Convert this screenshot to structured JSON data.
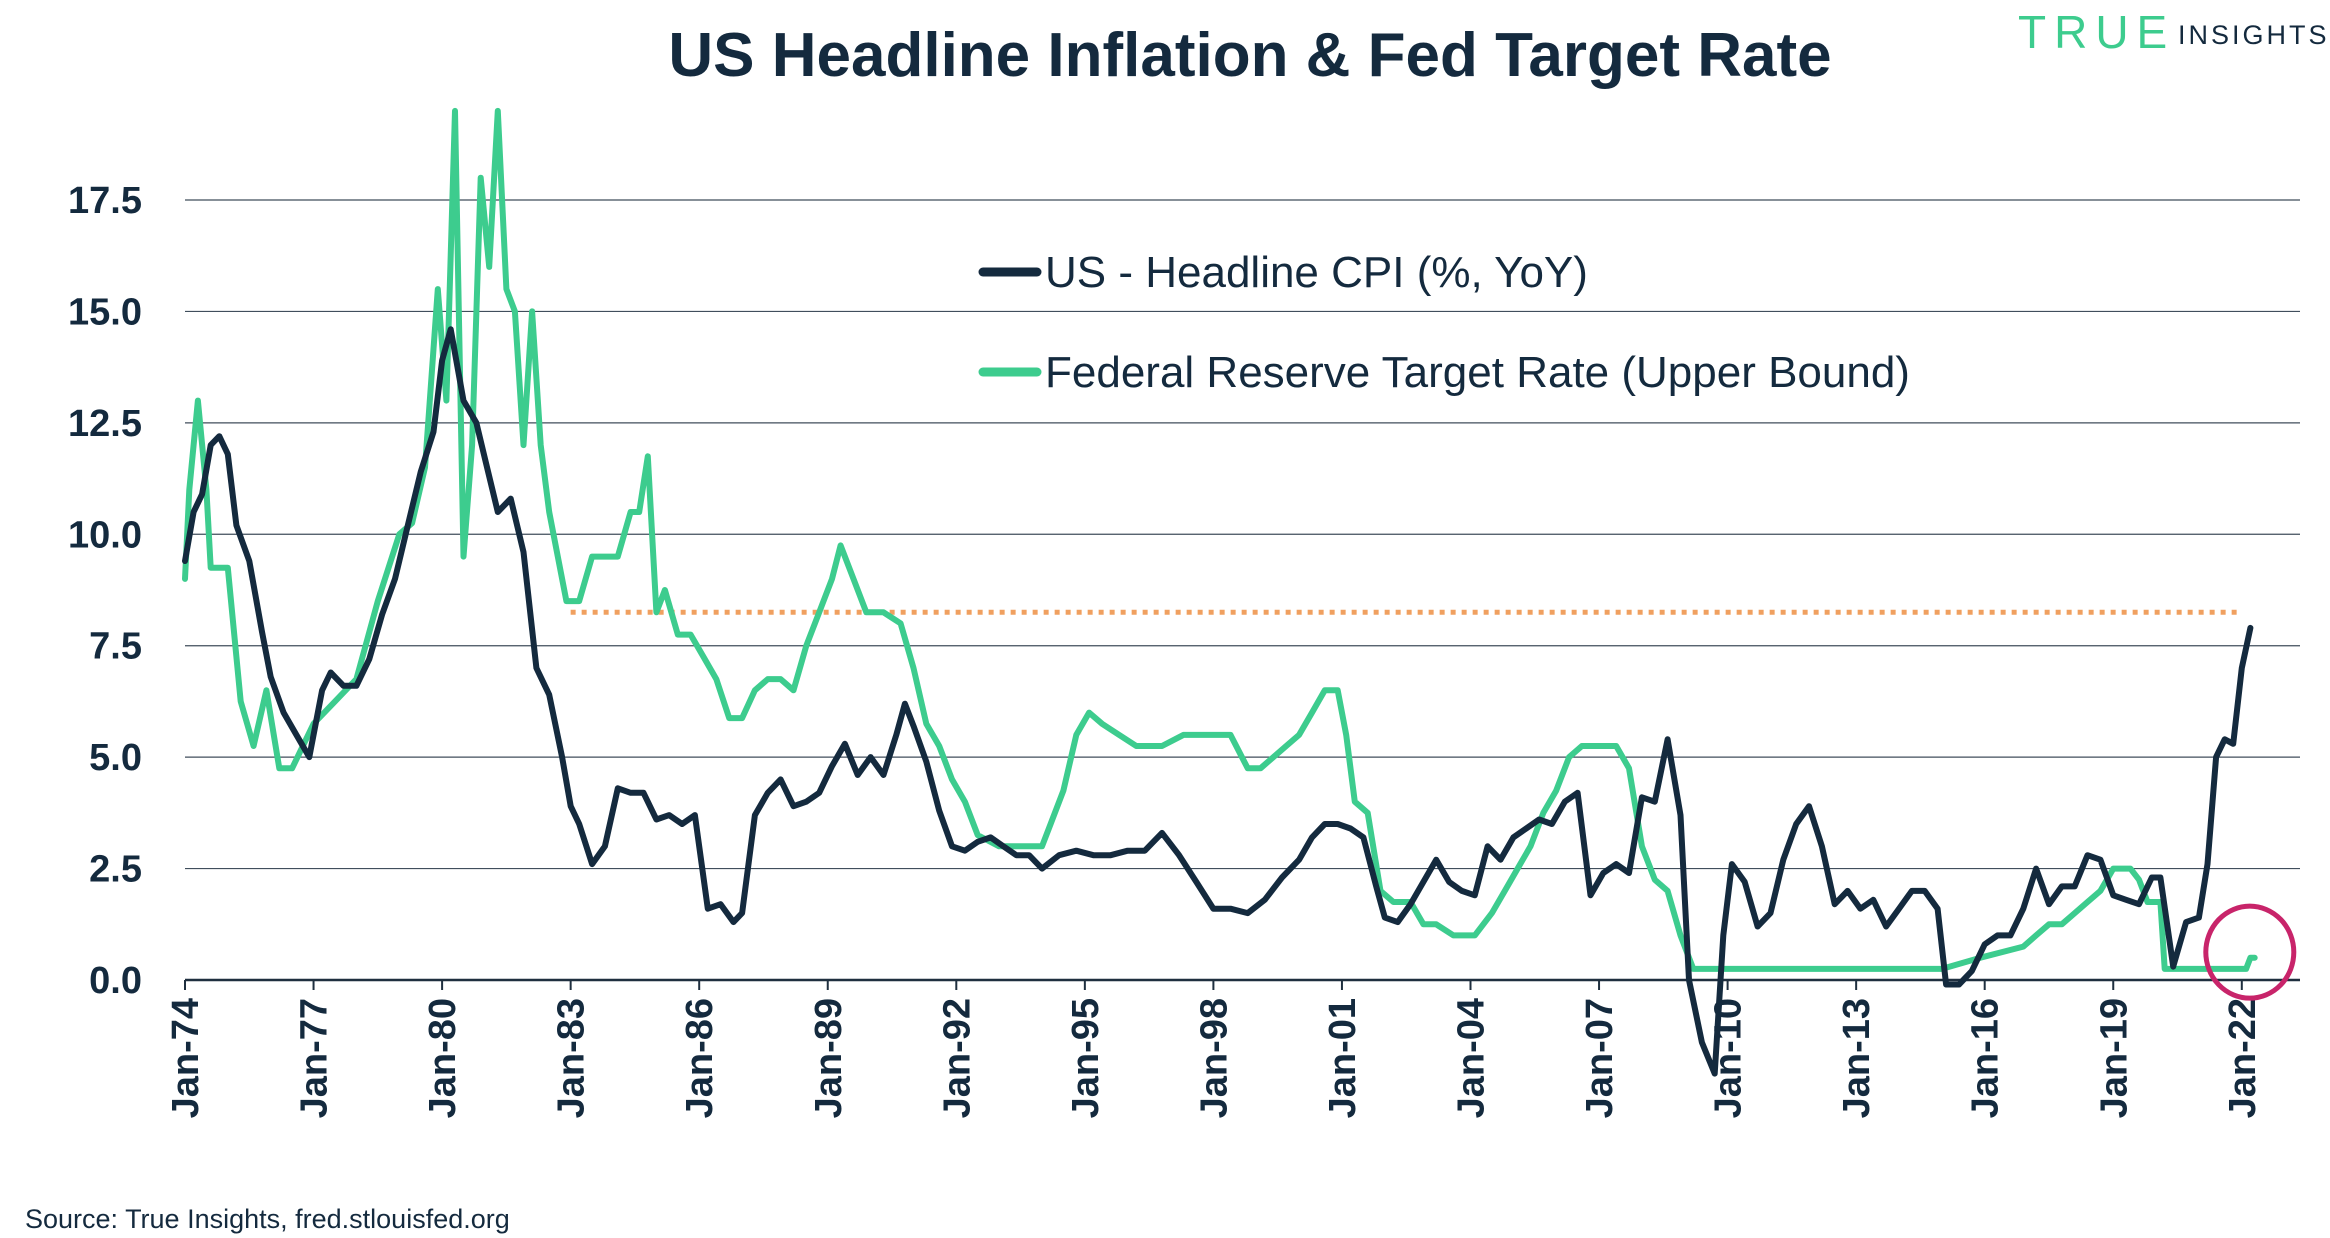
{
  "brand": {
    "logo_word1": "TRUE",
    "logo_word2": "INSIGHTS",
    "logo_color": "#3dcc8e"
  },
  "source": "Source: True Insights, fred.stlouisfed.org",
  "colors": {
    "cpi": "#142a3e",
    "fed": "#3dcc8e",
    "reference": "#f0a060",
    "highlight": "#c8246a",
    "grid": "#1f2f3f"
  },
  "chart_data": {
    "type": "line",
    "title": "US Headline Inflation & Fed Target Rate",
    "xlabel": "",
    "ylabel": "",
    "xlim": [
      1974.0,
      2022.5
    ],
    "ylim": [
      0,
      20
    ],
    "yticks": [
      0.0,
      2.5,
      5.0,
      7.5,
      10.0,
      12.5,
      15.0,
      17.5
    ],
    "ytick_labels": [
      "0.0",
      "2.5",
      "5.0",
      "7.5",
      "10.0",
      "12.5",
      "15.0",
      "17.5"
    ],
    "xticks": [
      1974,
      1977,
      1980,
      1983,
      1986,
      1989,
      1992,
      1995,
      1998,
      2001,
      2004,
      2007,
      2010,
      2013,
      2016,
      2019,
      2022
    ],
    "xtick_labels": [
      "Jan-74",
      "Jan-77",
      "Jan-80",
      "Jan-83",
      "Jan-86",
      "Jan-89",
      "Jan-92",
      "Jan-95",
      "Jan-98",
      "Jan-01",
      "Jan-04",
      "Jan-07",
      "Jan-10",
      "Jan-13",
      "Jan-16",
      "Jan-19",
      "Jan-22"
    ],
    "grid": true,
    "legend_position": "top-center",
    "series": [
      {
        "name": "US - Headline CPI (%, YoY)",
        "color": "#142a3e",
        "x": [
          1974.0,
          1974.2,
          1974.4,
          1974.6,
          1974.8,
          1975.0,
          1975.2,
          1975.5,
          1975.8,
          1976.0,
          1976.3,
          1976.6,
          1976.9,
          1977.2,
          1977.4,
          1977.7,
          1978.0,
          1978.3,
          1978.6,
          1978.9,
          1979.2,
          1979.5,
          1979.8,
          1980.0,
          1980.2,
          1980.5,
          1980.8,
          1981.0,
          1981.3,
          1981.6,
          1981.9,
          1982.2,
          1982.5,
          1982.8,
          1983.0,
          1983.2,
          1983.5,
          1983.8,
          1984.1,
          1984.4,
          1984.7,
          1985.0,
          1985.3,
          1985.6,
          1985.9,
          1986.2,
          1986.5,
          1986.8,
          1987.0,
          1987.3,
          1987.6,
          1987.9,
          1988.2,
          1988.5,
          1988.8,
          1989.1,
          1989.4,
          1989.7,
          1990.0,
          1990.3,
          1990.6,
          1990.8,
          1991.0,
          1991.3,
          1991.6,
          1991.9,
          1992.2,
          1992.5,
          1992.8,
          1993.1,
          1993.4,
          1993.7,
          1994.0,
          1994.4,
          1994.8,
          1995.2,
          1995.6,
          1996.0,
          1996.4,
          1996.8,
          1997.2,
          1997.6,
          1998.0,
          1998.4,
          1998.8,
          1999.2,
          1999.6,
          2000.0,
          2000.3,
          2000.6,
          2000.9,
          2001.2,
          2001.5,
          2001.8,
          2002.0,
          2002.3,
          2002.6,
          2002.9,
          2003.2,
          2003.5,
          2003.8,
          2004.1,
          2004.4,
          2004.7,
          2005.0,
          2005.3,
          2005.6,
          2005.9,
          2006.2,
          2006.5,
          2006.8,
          2007.1,
          2007.4,
          2007.7,
          2008.0,
          2008.3,
          2008.6,
          2008.9,
          2009.1,
          2009.4,
          2009.7,
          2009.9,
          2010.1,
          2010.4,
          2010.7,
          2011.0,
          2011.3,
          2011.6,
          2011.9,
          2012.2,
          2012.5,
          2012.8,
          2013.1,
          2013.4,
          2013.7,
          2014.0,
          2014.3,
          2014.6,
          2014.9,
          2015.1,
          2015.4,
          2015.7,
          2016.0,
          2016.3,
          2016.6,
          2016.9,
          2017.2,
          2017.5,
          2017.8,
          2018.1,
          2018.4,
          2018.7,
          2019.0,
          2019.3,
          2019.6,
          2019.9,
          2020.1,
          2020.4,
          2020.7,
          2021.0,
          2021.2,
          2021.4,
          2021.6,
          2021.8,
          2022.0,
          2022.2
        ],
        "values": [
          9.4,
          10.5,
          10.9,
          12.0,
          12.2,
          11.8,
          10.2,
          9.4,
          7.8,
          6.8,
          6.0,
          5.5,
          5.0,
          6.5,
          6.9,
          6.6,
          6.6,
          7.2,
          8.2,
          9.0,
          10.2,
          11.4,
          12.3,
          13.9,
          14.6,
          13.0,
          12.5,
          11.7,
          10.5,
          10.8,
          9.6,
          7.0,
          6.4,
          5.0,
          3.9,
          3.5,
          2.6,
          3.0,
          4.3,
          4.2,
          4.2,
          3.6,
          3.7,
          3.5,
          3.7,
          1.6,
          1.7,
          1.3,
          1.5,
          3.7,
          4.2,
          4.5,
          3.9,
          4.0,
          4.2,
          4.8,
          5.3,
          4.6,
          5.0,
          4.6,
          5.5,
          6.2,
          5.7,
          4.9,
          3.8,
          3.0,
          2.9,
          3.1,
          3.2,
          3.0,
          2.8,
          2.8,
          2.5,
          2.8,
          2.9,
          2.8,
          2.8,
          2.9,
          2.9,
          3.3,
          2.8,
          2.2,
          1.6,
          1.6,
          1.5,
          1.8,
          2.3,
          2.7,
          3.2,
          3.5,
          3.5,
          3.4,
          3.2,
          2.1,
          1.4,
          1.3,
          1.7,
          2.2,
          2.7,
          2.2,
          2.0,
          1.9,
          3.0,
          2.7,
          3.2,
          3.4,
          3.6,
          3.5,
          4.0,
          4.2,
          1.9,
          2.4,
          2.6,
          2.4,
          4.1,
          4.0,
          5.4,
          3.7,
          0.0,
          -1.4,
          -2.1,
          1.0,
          2.6,
          2.2,
          1.2,
          1.5,
          2.7,
          3.5,
          3.9,
          3.0,
          1.7,
          2.0,
          1.6,
          1.8,
          1.2,
          1.6,
          2.0,
          2.0,
          1.6,
          -0.1,
          -0.1,
          0.2,
          0.8,
          1.0,
          1.0,
          1.6,
          2.5,
          1.7,
          2.1,
          2.1,
          2.8,
          2.7,
          1.9,
          1.8,
          1.7,
          2.3,
          2.3,
          0.3,
          1.3,
          1.4,
          2.6,
          5.0,
          5.4,
          5.3,
          7.0,
          7.9
        ],
        "style": "solid"
      },
      {
        "name": "Federal Reserve Target Rate (Upper Bound)",
        "color": "#3dcc8e",
        "x": [
          1974.0,
          1974.1,
          1974.3,
          1974.5,
          1974.6,
          1975.0,
          1975.3,
          1975.6,
          1975.9,
          1976.2,
          1976.5,
          1977.0,
          1977.5,
          1978.0,
          1978.5,
          1979.0,
          1979.3,
          1979.6,
          1979.9,
          1980.1,
          1980.3,
          1980.5,
          1980.7,
          1980.9,
          1981.1,
          1981.3,
          1981.5,
          1981.7,
          1981.9,
          1982.1,
          1982.3,
          1982.5,
          1982.7,
          1982.9,
          1983.2,
          1983.5,
          1983.8,
          1984.1,
          1984.4,
          1984.6,
          1984.8,
          1985.0,
          1985.2,
          1985.5,
          1985.8,
          1986.1,
          1986.4,
          1986.7,
          1987.0,
          1987.3,
          1987.6,
          1987.9,
          1988.2,
          1988.5,
          1988.8,
          1989.1,
          1989.3,
          1989.6,
          1989.9,
          1990.3,
          1990.7,
          1991.0,
          1991.3,
          1991.6,
          1991.9,
          1992.2,
          1992.5,
          1993.0,
          1993.5,
          1994.0,
          1994.2,
          1994.5,
          1994.8,
          1995.1,
          1995.4,
          1995.8,
          1996.2,
          1996.8,
          1997.3,
          1997.8,
          1998.4,
          1998.8,
          1999.1,
          1999.4,
          1999.7,
          2000.0,
          2000.3,
          2000.6,
          2000.9,
          2001.1,
          2001.3,
          2001.6,
          2001.9,
          2002.2,
          2002.6,
          2002.9,
          2003.2,
          2003.6,
          2004.1,
          2004.5,
          2004.8,
          2005.1,
          2005.4,
          2005.7,
          2006.0,
          2006.3,
          2006.6,
          2007.0,
          2007.4,
          2007.7,
          2008.0,
          2008.3,
          2008.6,
          2008.9,
          2009.2,
          2010.0,
          2011.0,
          2012.0,
          2013.0,
          2014.0,
          2015.0,
          2015.9,
          2016.9,
          2017.2,
          2017.5,
          2017.8,
          2018.1,
          2018.4,
          2018.7,
          2019.0,
          2019.4,
          2019.6,
          2019.8,
          2020.1,
          2020.2,
          2021.0,
          2021.9,
          2022.1,
          2022.2,
          2022.3
        ],
        "values": [
          9.0,
          11.0,
          13.0,
          11.0,
          9.25,
          9.25,
          6.25,
          5.25,
          6.5,
          4.75,
          4.75,
          5.75,
          6.25,
          6.75,
          8.5,
          10.0,
          10.25,
          11.5,
          15.5,
          13.0,
          19.5,
          9.5,
          12.0,
          18.0,
          16.0,
          19.5,
          15.5,
          15.0,
          12.0,
          15.0,
          12.0,
          10.5,
          9.5,
          8.5,
          8.5,
          9.5,
          9.5,
          9.5,
          10.5,
          10.5,
          11.75,
          8.25,
          8.75,
          7.75,
          7.75,
          7.25,
          6.75,
          5.875,
          5.875,
          6.5,
          6.75,
          6.75,
          6.5,
          7.5,
          8.25,
          9.0,
          9.75,
          9.0,
          8.25,
          8.25,
          8.0,
          7.0,
          5.75,
          5.25,
          4.5,
          4.0,
          3.25,
          3.0,
          3.0,
          3.0,
          3.5,
          4.25,
          5.5,
          6.0,
          5.75,
          5.5,
          5.25,
          5.25,
          5.5,
          5.5,
          5.5,
          4.75,
          4.75,
          5.0,
          5.25,
          5.5,
          6.0,
          6.5,
          6.5,
          5.5,
          4.0,
          3.75,
          2.0,
          1.75,
          1.75,
          1.25,
          1.25,
          1.0,
          1.0,
          1.5,
          2.0,
          2.5,
          3.0,
          3.75,
          4.25,
          5.0,
          5.25,
          5.25,
          5.25,
          4.75,
          3.0,
          2.25,
          2.0,
          1.0,
          0.25,
          0.25,
          0.25,
          0.25,
          0.25,
          0.25,
          0.25,
          0.5,
          0.75,
          1.0,
          1.25,
          1.25,
          1.5,
          1.75,
          2.0,
          2.5,
          2.5,
          2.25,
          1.75,
          1.75,
          0.25,
          0.25,
          0.25,
          0.25,
          0.5,
          0.5
        ],
        "style": "solid"
      }
    ],
    "reference_line": {
      "value": 8.25,
      "x_start": 1983.0,
      "x_end": 2022.0,
      "style": "dotted",
      "color": "#f0a060"
    },
    "highlight_circle": {
      "x": 2022.0,
      "y": 0.4,
      "color": "#c8246a"
    }
  }
}
